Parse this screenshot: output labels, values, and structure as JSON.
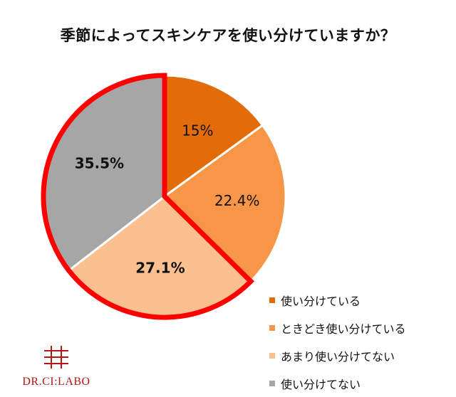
{
  "chart_data": {
    "type": "pie",
    "title": "季節によってスキンケアを使い分けていますか？",
    "slices": [
      {
        "label": "使い分けている",
        "value": 15,
        "display": "15%",
        "color": "#e36c0a",
        "bold": false
      },
      {
        "label": "ときどき使い分けている",
        "value": 22.4,
        "display": "22.4%",
        "color": "#f79646",
        "bold": false
      },
      {
        "label": "あまり使い分けてない",
        "value": 27.1,
        "display": "27.1%",
        "color": "#fac090",
        "bold": true
      },
      {
        "label": "使い分けてない",
        "value": 35.5,
        "display": "35.5%",
        "color": "#a6a6a6",
        "bold": true
      }
    ],
    "highlight": {
      "slices": [
        2,
        3
      ],
      "color": "#ff0000"
    },
    "legend_placement": "bottom-right"
  },
  "logo": {
    "text": "DR.CI:LABO",
    "color": "#b01818"
  }
}
